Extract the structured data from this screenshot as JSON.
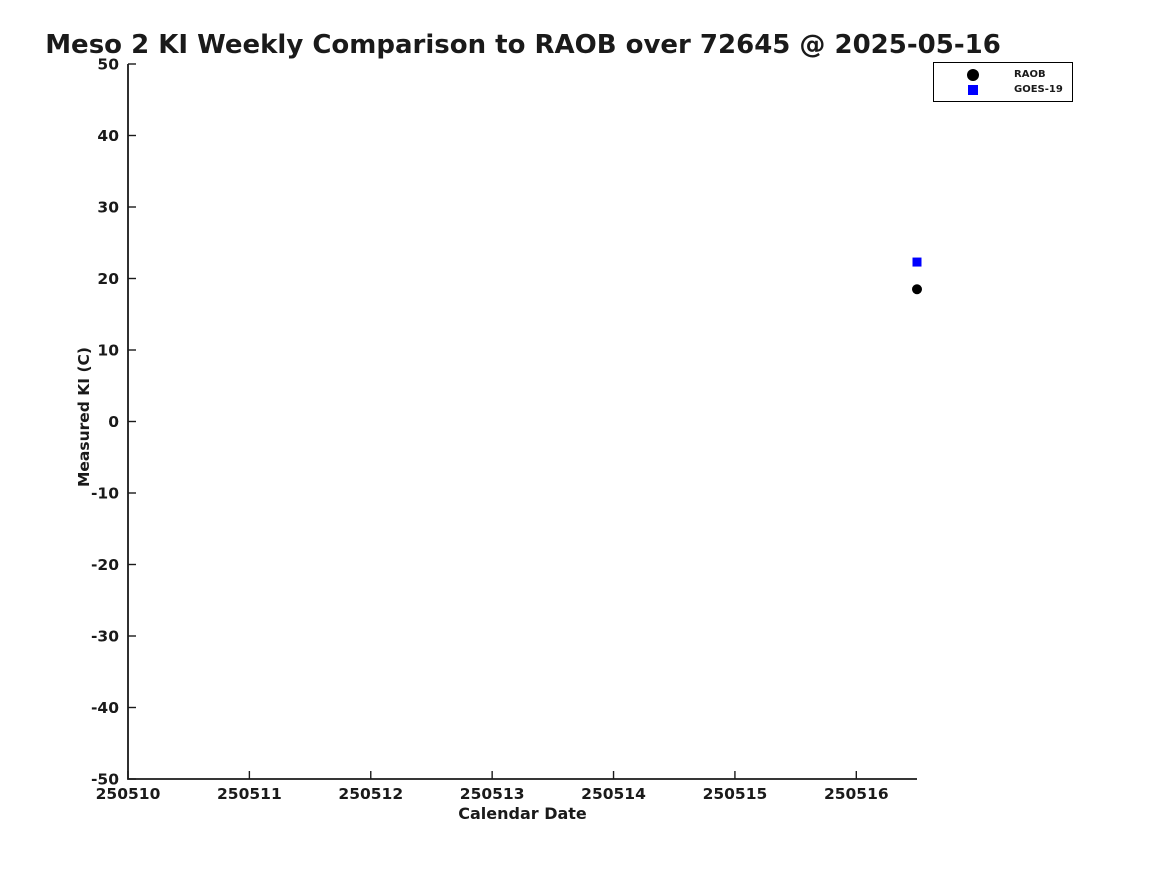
{
  "chart_data": {
    "type": "scatter",
    "title": "Meso 2 KI Weekly Comparison to RAOB over 72645 @ 2025-05-16",
    "xlabel": "Calendar Date",
    "ylabel": "Measured KI (C)",
    "xlim": [
      250510,
      250516.5
    ],
    "ylim": [
      -50,
      50
    ],
    "x_ticks": [
      250510,
      250511,
      250512,
      250513,
      250514,
      250515,
      250516
    ],
    "y_ticks": [
      50,
      40,
      30,
      20,
      10,
      0,
      -10,
      -20,
      -30,
      -40,
      -50
    ],
    "grid": false,
    "background": "#ffffff",
    "axis_color": "#1a1a1a",
    "legend": {
      "position": "top-right",
      "border_color": "#000000"
    },
    "series": [
      {
        "name": "RAOB",
        "marker": "circle",
        "color": "#000000",
        "points": [
          {
            "x": 250516.5,
            "y": 18.5
          }
        ]
      },
      {
        "name": "GOES-19",
        "marker": "square",
        "color": "#0000ff",
        "points": [
          {
            "x": 250516.5,
            "y": 22.3
          }
        ]
      }
    ]
  }
}
